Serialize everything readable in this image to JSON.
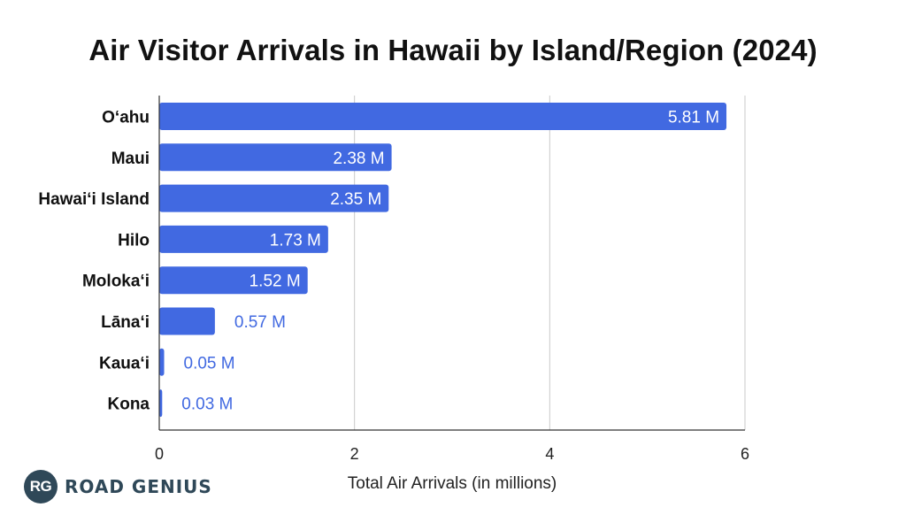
{
  "chart_data": {
    "type": "bar",
    "orientation": "horizontal",
    "title": "Air Visitor Arrivals in Hawaii by Island/Region (2024)",
    "xlabel": "Total Air Arrivals (in millions)",
    "ylabel": "",
    "xlim": [
      0,
      6
    ],
    "xticks": [
      "0",
      "2",
      "4",
      "6"
    ],
    "grid": true,
    "legend": "none",
    "bar_color": "#4169e1",
    "categories": [
      "O‘ahu",
      "Maui",
      "Hawai‘i Island",
      "Hilo",
      "Moloka‘i",
      "Lāna‘i",
      "Kaua‘i",
      "Kona"
    ],
    "values": [
      5.81,
      2.38,
      2.35,
      1.73,
      1.52,
      0.57,
      0.05,
      0.03
    ],
    "data_labels": [
      "5.81 M",
      "2.38 M",
      "2.35 M",
      "1.73 M",
      "1.52 M",
      "0.57 M",
      "0.05 M",
      "0.03 M"
    ]
  },
  "logo": {
    "badge": "RG",
    "text": "ROAD GENIUS"
  }
}
